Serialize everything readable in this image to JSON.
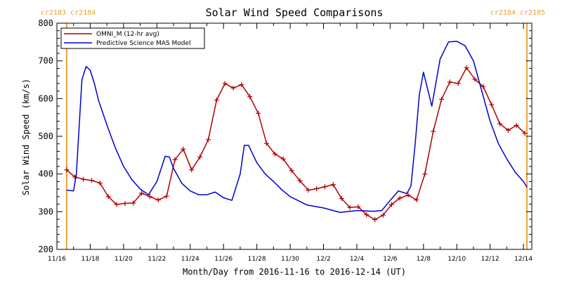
{
  "chart_data": {
    "type": "line",
    "title": "Solar Wind Speed Comparisons",
    "xlabel": "Month/Day from 2016-11-16 to 2016-12-14 (UT)",
    "ylabel": "Solar Wind Speed (km/s)",
    "xlim": [
      "2016-11-16",
      "2016-12-14 12:00"
    ],
    "ylim": [
      200,
      800
    ],
    "yticks": [
      200,
      300,
      400,
      500,
      600,
      700,
      800
    ],
    "xtick_labels": [
      "11/16",
      "11/18",
      "11/20",
      "11/22",
      "11/24",
      "11/26",
      "11/28",
      "11/30",
      "12/2",
      "12/4",
      "12/6",
      "12/8",
      "12/10",
      "12/12",
      "12/14"
    ],
    "legend_position": "top-left",
    "carrington_labels": {
      "left": "cr2183 cr2184",
      "right": "cr2184 cr2185"
    },
    "carrington_boundaries": [
      "2016-11-16 14:00",
      "2016-12-14 05:00"
    ],
    "carrington_color": "#f0a030",
    "series": [
      {
        "name": "OMNI_M (12-hr avg)",
        "color": "#b00000",
        "marker": "+",
        "x": [
          "2016-11-16 14:00",
          "2016-11-17 02:00",
          "2016-11-17 14:00",
          "2016-11-18 02:00",
          "2016-11-18 14:00",
          "2016-11-19 02:00",
          "2016-11-19 14:00",
          "2016-11-20 02:00",
          "2016-11-20 14:00",
          "2016-11-21 02:00",
          "2016-11-21 14:00",
          "2016-11-22 02:00",
          "2016-11-22 14:00",
          "2016-11-23 02:00",
          "2016-11-23 14:00",
          "2016-11-24 02:00",
          "2016-11-24 14:00",
          "2016-11-25 02:00",
          "2016-11-25 14:00",
          "2016-11-26 02:00",
          "2016-11-26 14:00",
          "2016-11-27 02:00",
          "2016-11-27 14:00",
          "2016-11-28 02:00",
          "2016-11-28 14:00",
          "2016-11-29 02:00",
          "2016-11-29 14:00",
          "2016-11-30 02:00",
          "2016-11-30 14:00",
          "2016-12-01 02:00",
          "2016-12-01 14:00",
          "2016-12-02 02:00",
          "2016-12-02 14:00",
          "2016-12-03 02:00",
          "2016-12-03 14:00",
          "2016-12-04 02:00",
          "2016-12-04 14:00",
          "2016-12-05 02:00",
          "2016-12-05 14:00",
          "2016-12-06 02:00",
          "2016-12-06 14:00",
          "2016-12-07 02:00",
          "2016-12-07 14:00",
          "2016-12-08 02:00",
          "2016-12-08 14:00",
          "2016-12-09 02:00",
          "2016-12-09 14:00",
          "2016-12-10 02:00",
          "2016-12-10 14:00",
          "2016-12-11 02:00",
          "2016-12-11 14:00",
          "2016-12-12 02:00",
          "2016-12-12 14:00",
          "2016-12-13 02:00",
          "2016-12-13 14:00",
          "2016-12-14 02:00"
        ],
        "y": [
          411,
          392,
          386,
          383,
          376,
          340,
          319,
          322,
          323,
          349,
          340,
          331,
          341,
          438,
          466,
          411,
          445,
          491,
          596,
          640,
          628,
          637,
          605,
          561,
          481,
          453,
          440,
          409,
          382,
          357,
          361,
          366,
          372,
          335,
          311,
          313,
          292,
          279,
          291,
          319,
          336,
          344,
          331,
          400,
          513,
          598,
          644,
          640,
          682,
          651,
          632,
          584,
          533,
          516,
          529,
          508
        ]
      },
      {
        "name": "Predictive Science MAS Model",
        "color": "#0000cc",
        "marker": "none",
        "x": [
          "2016-11-16 14:00",
          "2016-11-17 00:00",
          "2016-11-17 04:00",
          "2016-11-17 12:00",
          "2016-11-17 18:00",
          "2016-11-18 00:00",
          "2016-11-18 06:00",
          "2016-11-18 12:00",
          "2016-11-19 00:00",
          "2016-11-19 12:00",
          "2016-11-20 00:00",
          "2016-11-20 12:00",
          "2016-11-21 00:00",
          "2016-11-21 12:00",
          "2016-11-22 00:00",
          "2016-11-22 12:00",
          "2016-11-22 18:00",
          "2016-11-23 00:00",
          "2016-11-23 12:00",
          "2016-11-24 00:00",
          "2016-11-24 12:00",
          "2016-11-25 00:00",
          "2016-11-25 12:00",
          "2016-11-26 00:00",
          "2016-11-26 12:00",
          "2016-11-27 00:00",
          "2016-11-27 06:00",
          "2016-11-27 12:00",
          "2016-11-28 00:00",
          "2016-11-28 12:00",
          "2016-11-29 00:00",
          "2016-11-29 12:00",
          "2016-11-30 00:00",
          "2016-12-01 00:00",
          "2016-12-02 00:00",
          "2016-12-03 00:00",
          "2016-12-04 00:00",
          "2016-12-05 00:00",
          "2016-12-05 12:00",
          "2016-12-06 00:00",
          "2016-12-06 12:00",
          "2016-12-07 00:00",
          "2016-12-07 06:00",
          "2016-12-07 12:00",
          "2016-12-07 18:00",
          "2016-12-08 00:00",
          "2016-12-08 12:00",
          "2016-12-09 00:00",
          "2016-12-09 12:00",
          "2016-12-10 00:00",
          "2016-12-10 12:00",
          "2016-12-11 00:00",
          "2016-12-11 12:00",
          "2016-12-12 00:00",
          "2016-12-12 12:00",
          "2016-12-13 00:00",
          "2016-12-13 12:00",
          "2016-12-14 00:00",
          "2016-12-14 05:00"
        ],
        "y": [
          357,
          355,
          400,
          650,
          685,
          675,
          640,
          595,
          530,
          470,
          420,
          385,
          360,
          345,
          380,
          447,
          445,
          415,
          375,
          355,
          345,
          345,
          352,
          337,
          330,
          400,
          476,
          476,
          430,
          400,
          380,
          358,
          340,
          318,
          310,
          298,
          303,
          301,
          303,
          330,
          355,
          348,
          368,
          480,
          610,
          670,
          580,
          705,
          750,
          752,
          740,
          700,
          620,
          540,
          480,
          440,
          405,
          380,
          365
        ]
      }
    ]
  }
}
